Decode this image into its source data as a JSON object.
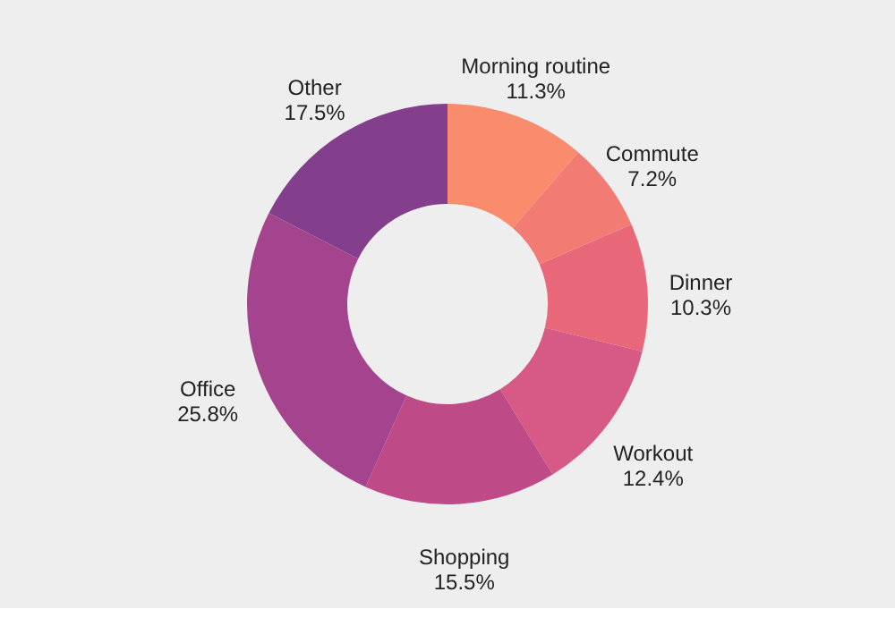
{
  "chart_data": {
    "type": "donut",
    "categories": [
      "Morning routine",
      "Commute",
      "Dinner",
      "Workout",
      "Shopping",
      "Office",
      "Other"
    ],
    "values": [
      11.3,
      7.2,
      10.3,
      12.4,
      15.5,
      25.8,
      17.5
    ],
    "value_labels": [
      "11.3%",
      "7.2%",
      "10.3%",
      "12.4%",
      "15.5%",
      "25.8%",
      "17.5%"
    ],
    "colors": [
      "#fa8c6e",
      "#f27c74",
      "#e8687a",
      "#d65a85",
      "#bf4a88",
      "#a4448e",
      "#843f8c"
    ],
    "legend": false
  }
}
